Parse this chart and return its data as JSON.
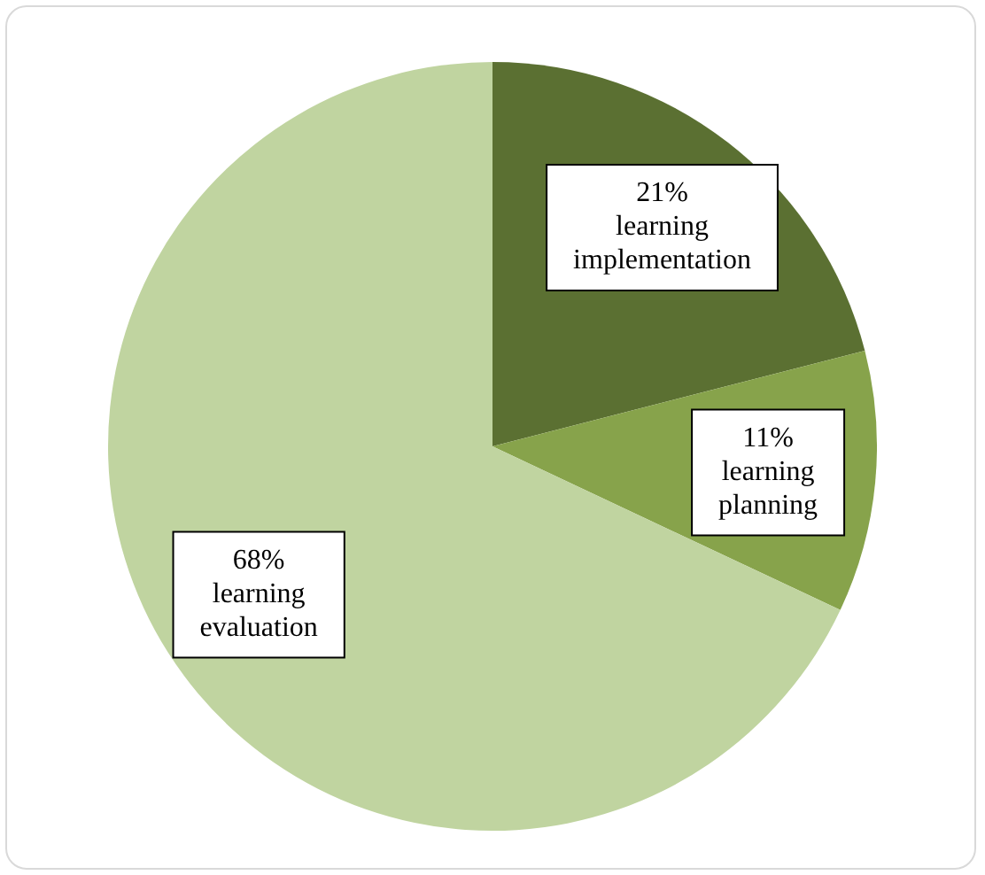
{
  "chart_data": {
    "type": "pie",
    "categories": [
      "learning implementation",
      "learning planning",
      "learning evaluation"
    ],
    "values": [
      21,
      11,
      68
    ],
    "colors": [
      "#5b7032",
      "#87a34b",
      "#c0d4a0"
    ],
    "value_labels": [
      "21%",
      "11%",
      "68%"
    ],
    "legend": false
  }
}
